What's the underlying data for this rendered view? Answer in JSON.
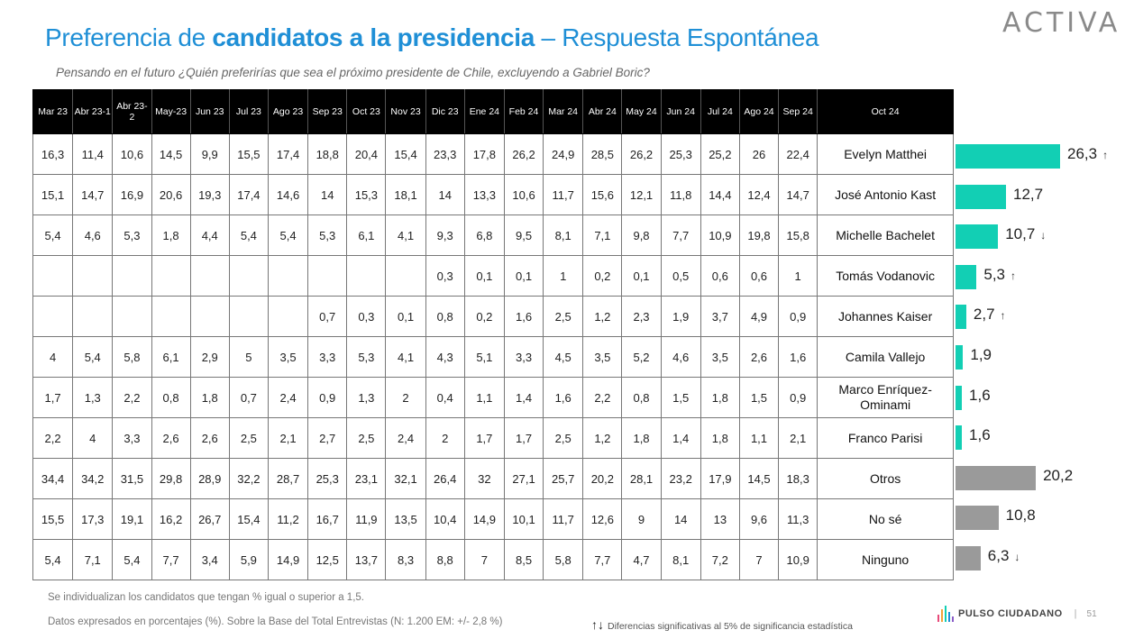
{
  "header": {
    "title_regular": "Preferencia de ",
    "title_bold": "candidatos a la presidencia",
    "title_suffix": " – Respuesta Espontánea",
    "subtitle": "Pensando en el futuro ¿Quién preferirías que sea el próximo presidente de Chile, excluyendo a Gabriel Boric?",
    "logo": "ACTIVA"
  },
  "table": {
    "columns": [
      "Mar 23",
      "Abr 23-1",
      "Abr 23-2",
      "May-23",
      "Jun 23",
      "Jul 23",
      "Ago 23",
      "Sep 23",
      "Oct 23",
      "Nov 23",
      "Dic 23",
      "Ene  24",
      "Feb 24",
      "Mar 24",
      "Abr 24",
      "May 24",
      "Jun 24",
      "Jul 24",
      "Ago 24",
      "Sep 24"
    ],
    "current_column": "Oct 24",
    "rows": [
      {
        "name": "Evelyn Matthei",
        "values": [
          "16,3",
          "11,4",
          "10,6",
          "14,5",
          "9,9",
          "15,5",
          "17,4",
          "18,8",
          "20,4",
          "15,4",
          "23,3",
          "17,8",
          "26,2",
          "24,9",
          "28,5",
          "26,2",
          "25,3",
          "25,2",
          "26",
          "22,4"
        ]
      },
      {
        "name": "José Antonio Kast",
        "values": [
          "15,1",
          "14,7",
          "16,9",
          "20,6",
          "19,3",
          "17,4",
          "14,6",
          "14",
          "15,3",
          "18,1",
          "14",
          "13,3",
          "10,6",
          "11,7",
          "15,6",
          "12,1",
          "11,8",
          "14,4",
          "12,4",
          "14,7"
        ]
      },
      {
        "name": "Michelle Bachelet",
        "values": [
          "5,4",
          "4,6",
          "5,3",
          "1,8",
          "4,4",
          "5,4",
          "5,4",
          "5,3",
          "6,1",
          "4,1",
          "9,3",
          "6,8",
          "9,5",
          "8,1",
          "7,1",
          "9,8",
          "7,7",
          "10,9",
          "19,8",
          "15,8"
        ]
      },
      {
        "name": "Tomás Vodanovic",
        "values": [
          "",
          "",
          "",
          "",
          "",
          "",
          "",
          "",
          "",
          "",
          "0,3",
          "0,1",
          "0,1",
          "1",
          "0,2",
          "0,1",
          "0,5",
          "0,6",
          "0,6",
          "1"
        ]
      },
      {
        "name": "Johannes Kaiser",
        "values": [
          "",
          "",
          "",
          "",
          "",
          "",
          "",
          "0,7",
          "0,3",
          "0,1",
          "0,8",
          "0,2",
          "1,6",
          "2,5",
          "1,2",
          "2,3",
          "1,9",
          "3,7",
          "4,9",
          "0,9"
        ]
      },
      {
        "name": "Camila Vallejo",
        "values": [
          "4",
          "5,4",
          "5,8",
          "6,1",
          "2,9",
          "5",
          "3,5",
          "3,3",
          "5,3",
          "4,1",
          "4,3",
          "5,1",
          "3,3",
          "4,5",
          "3,5",
          "5,2",
          "4,6",
          "3,5",
          "2,6",
          "1,6"
        ]
      },
      {
        "name": "Marco Enríquez-Ominami",
        "values": [
          "1,7",
          "1,3",
          "2,2",
          "0,8",
          "1,8",
          "0,7",
          "2,4",
          "0,9",
          "1,3",
          "2",
          "0,4",
          "1,1",
          "1,4",
          "1,6",
          "2,2",
          "0,8",
          "1,5",
          "1,8",
          "1,5",
          "0,9"
        ]
      },
      {
        "name": "Franco Parisi",
        "values": [
          "2,2",
          "4",
          "3,3",
          "2,6",
          "2,6",
          "2,5",
          "2,1",
          "2,7",
          "2,5",
          "2,4",
          "2",
          "1,7",
          "1,7",
          "2,5",
          "1,2",
          "1,8",
          "1,4",
          "1,8",
          "1,1",
          "2,1"
        ]
      },
      {
        "name": "Otros",
        "values": [
          "34,4",
          "34,2",
          "31,5",
          "29,8",
          "28,9",
          "32,2",
          "28,7",
          "25,3",
          "23,1",
          "32,1",
          "26,4",
          "32",
          "27,1",
          "25,7",
          "20,2",
          "28,1",
          "23,2",
          "17,9",
          "14,5",
          "18,3"
        ]
      },
      {
        "name": "No sé",
        "values": [
          "15,5",
          "17,3",
          "19,1",
          "16,2",
          "26,7",
          "15,4",
          "11,2",
          "16,7",
          "11,9",
          "13,5",
          "10,4",
          "14,9",
          "10,1",
          "11,7",
          "12,6",
          "9",
          "14",
          "13",
          "9,6",
          "11,3"
        ]
      },
      {
        "name": "Ninguno",
        "values": [
          "5,4",
          "7,1",
          "5,4",
          "7,7",
          "3,4",
          "5,9",
          "14,9",
          "12,5",
          "13,7",
          "8,3",
          "8,8",
          "7",
          "8,5",
          "5,8",
          "7,7",
          "4,7",
          "8,1",
          "7,2",
          "7",
          "10,9"
        ]
      }
    ]
  },
  "chart_data": {
    "type": "bar",
    "categories": [
      "Evelyn Matthei",
      "José Antonio Kast",
      "Michelle Bachelet",
      "Tomás Vodanovic",
      "Johannes Kaiser",
      "Camila Vallejo",
      "Marco Enríquez-Ominami",
      "Franco Parisi",
      "Otros",
      "No sé",
      "Ninguno"
    ],
    "values": [
      26.3,
      12.7,
      10.7,
      5.3,
      2.7,
      1.9,
      1.6,
      1.6,
      20.2,
      10.8,
      6.3
    ],
    "labels": [
      "26,3",
      "12,7",
      "10,7",
      "5,3",
      "2,7",
      "1,9",
      "1,6",
      "1,6",
      "20,2",
      "10,8",
      "6,3"
    ],
    "trend": [
      "up",
      "",
      "down",
      "up",
      "up",
      "",
      "",
      "",
      "",
      "",
      "down"
    ],
    "bar_kind": [
      "candidate",
      "candidate",
      "candidate",
      "candidate",
      "candidate",
      "candidate",
      "candidate",
      "candidate",
      "other",
      "other",
      "other"
    ],
    "colors": {
      "candidate": "#12cfb4",
      "other": "#9a9a9a"
    },
    "orientation": "horizontal",
    "series_label": "Oct 24",
    "xlim": [
      0,
      30
    ]
  },
  "footer": {
    "note1": "Se individualizan los candidatos que tengan % igual o superior a 1,5.",
    "note2": "Datos expresados en porcentajes (%). Sobre la Base del Total Entrevistas (N: 1.200  EM: +/- 2,8 %)",
    "legend_icon": "↑↓",
    "legend": "Diferencias  significativas  al 5% de significancia estadística",
    "brand": "PULSO CIUDADANO",
    "separator": "|",
    "page": "51"
  }
}
